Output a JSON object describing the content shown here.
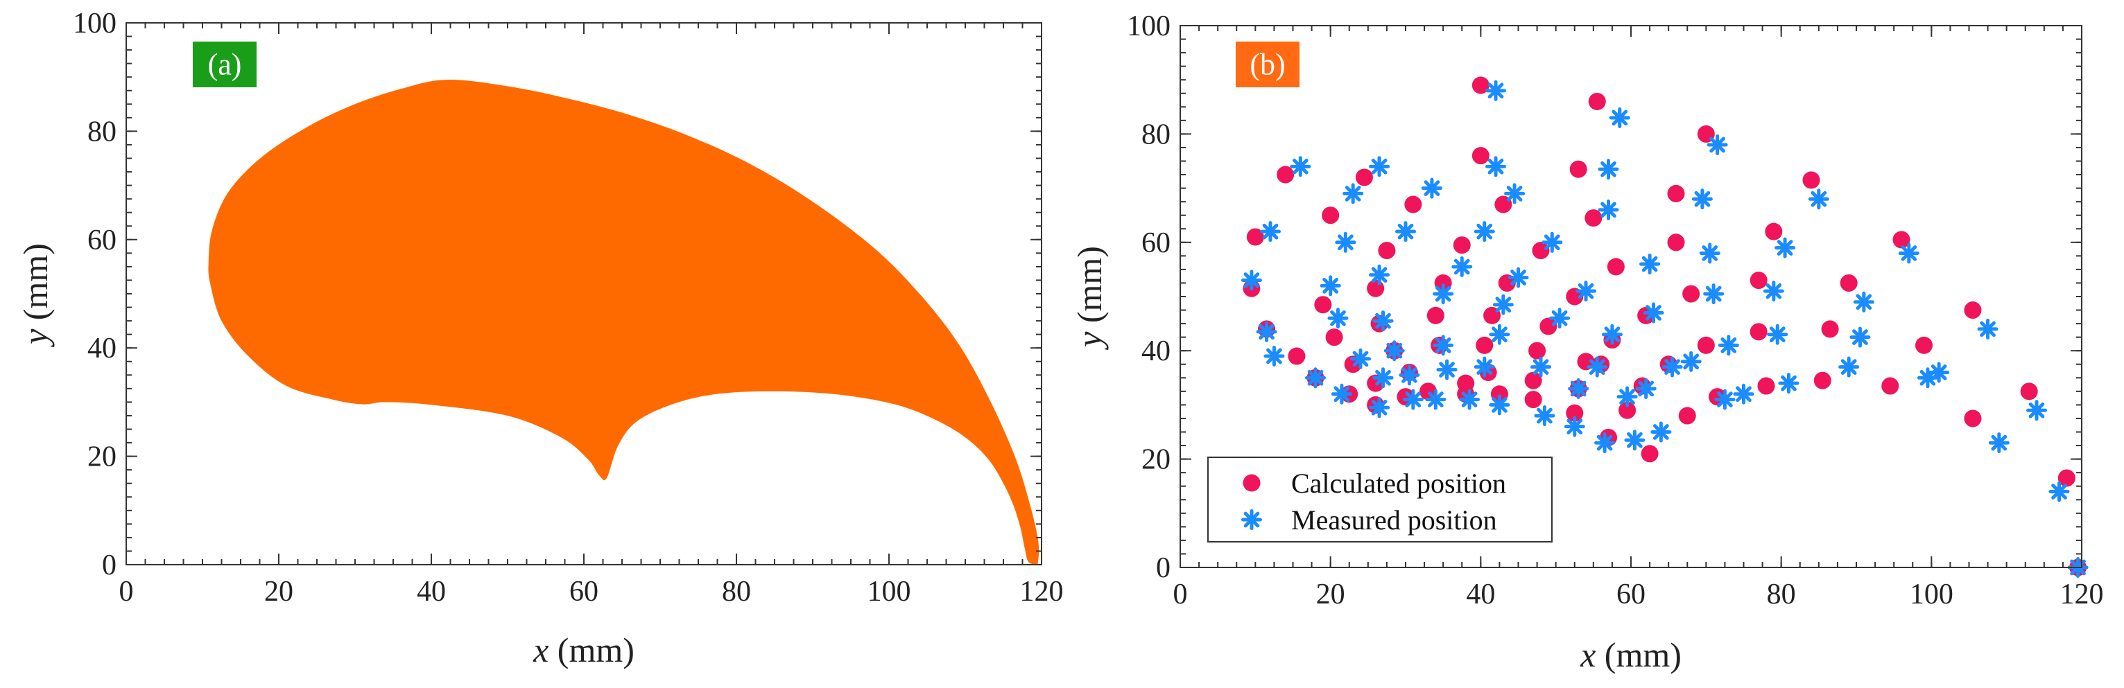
{
  "panels": [
    {
      "badge": "(a)",
      "badge_color": "#1a9e1a",
      "xlabel_var": "x",
      "xlabel_unit": " (mm)",
      "ylabel_var": "y",
      "ylabel_unit": " (mm)"
    },
    {
      "badge": "(b)",
      "badge_color": "#ff6a13",
      "xlabel_var": "x",
      "xlabel_unit": " (mm)",
      "ylabel_var": "y",
      "ylabel_unit": " (mm)"
    }
  ],
  "chart_data": [
    {
      "type": "area",
      "xlim": [
        0,
        120
      ],
      "ylim": [
        0,
        100
      ],
      "xticks": [
        0,
        20,
        40,
        60,
        80,
        100,
        120
      ],
      "yticks": [
        0,
        20,
        40,
        60,
        80,
        100
      ],
      "fill_color": "#ff6a00",
      "series": [
        {
          "outline": [
            [
              119.5,
              0
            ],
            [
              118.3,
              0.5
            ],
            [
              117.8,
              3
            ],
            [
              117.2,
              7
            ],
            [
              116.3,
              11
            ],
            [
              115,
              15
            ],
            [
              113,
              19.5
            ],
            [
              110,
              23.5
            ],
            [
              106,
              26.8
            ],
            [
              101,
              29.5
            ],
            [
              94,
              31.3
            ],
            [
              86,
              32
            ],
            [
              78,
              31.6
            ],
            [
              72,
              29.8
            ],
            [
              67,
              26.5
            ],
            [
              64.5,
              22
            ],
            [
              63,
              16
            ],
            [
              62,
              16.5
            ],
            [
              60.5,
              19.5
            ],
            [
              57,
              23.5
            ],
            [
              50,
              27.5
            ],
            [
              40,
              29.5
            ],
            [
              34,
              30
            ],
            [
              31,
              29.6
            ],
            [
              27,
              30.5
            ],
            [
              21,
              33
            ],
            [
              16,
              38.5
            ],
            [
              12.5,
              45
            ],
            [
              11,
              52
            ],
            [
              10.8,
              56
            ],
            [
              11.3,
              62
            ],
            [
              13.5,
              69
            ],
            [
              18,
              75.5
            ],
            [
              24,
              81
            ],
            [
              30,
              85
            ],
            [
              36,
              87.8
            ],
            [
              42,
              89.5
            ],
            [
              50,
              88.3
            ],
            [
              58,
              86
            ],
            [
              66,
              83
            ],
            [
              74,
              79
            ],
            [
              82,
              73.8
            ],
            [
              90,
              67
            ],
            [
              98,
              58.5
            ],
            [
              104,
              50
            ],
            [
              109,
              41
            ],
            [
              113,
              31
            ],
            [
              116.5,
              20
            ],
            [
              118.5,
              11
            ],
            [
              119.6,
              4
            ],
            [
              119.5,
              0
            ]
          ]
        }
      ]
    },
    {
      "type": "scatter",
      "xlim": [
        0,
        120
      ],
      "ylim": [
        0,
        100
      ],
      "xticks": [
        0,
        20,
        40,
        60,
        80,
        100,
        120
      ],
      "yticks": [
        0,
        20,
        40,
        60,
        80,
        100
      ],
      "legend_position": "bottom-left",
      "series": [
        {
          "name": "Calculated position",
          "marker": "circle",
          "color": "#f0145a",
          "points": [
            [
              9.5,
              51.5
            ],
            [
              10,
              61
            ],
            [
              11.5,
              44
            ],
            [
              14,
              72.5
            ],
            [
              15.5,
              39
            ],
            [
              18,
              35
            ],
            [
              19,
              48.5
            ],
            [
              20,
              65
            ],
            [
              20.5,
              42.5
            ],
            [
              22.5,
              32
            ],
            [
              23,
              37.5
            ],
            [
              24.5,
              72
            ],
            [
              26,
              51.5
            ],
            [
              26,
              34
            ],
            [
              26,
              30
            ],
            [
              26.5,
              45
            ],
            [
              27.5,
              58.5
            ],
            [
              28.5,
              40
            ],
            [
              30,
              31.5
            ],
            [
              30.5,
              36
            ],
            [
              31,
              67
            ],
            [
              33,
              32.5
            ],
            [
              34,
              46.5
            ],
            [
              34.5,
              41
            ],
            [
              35,
              52.5
            ],
            [
              37.5,
              59.5
            ],
            [
              38,
              32
            ],
            [
              38,
              34
            ],
            [
              40,
              76
            ],
            [
              40,
              89
            ],
            [
              40.5,
              41
            ],
            [
              41,
              36
            ],
            [
              41.5,
              46.5
            ],
            [
              42.5,
              32
            ],
            [
              43,
              67
            ],
            [
              43.5,
              52.5
            ],
            [
              47,
              34.5
            ],
            [
              47,
              31
            ],
            [
              47.5,
              40
            ],
            [
              48,
              58.5
            ],
            [
              49,
              44.5
            ],
            [
              52.5,
              28.5
            ],
            [
              52.5,
              50
            ],
            [
              53,
              33
            ],
            [
              53,
              73.5
            ],
            [
              54,
              38
            ],
            [
              55,
              64.5
            ],
            [
              55.5,
              86
            ],
            [
              56,
              37.5
            ],
            [
              57,
              24
            ],
            [
              57.5,
              42
            ],
            [
              58,
              55.5
            ],
            [
              59.5,
              29
            ],
            [
              61.5,
              33.5
            ],
            [
              62,
              46.5
            ],
            [
              62.5,
              21
            ],
            [
              65,
              37.5
            ],
            [
              66,
              60
            ],
            [
              66,
              69
            ],
            [
              67.5,
              28
            ],
            [
              68,
              50.5
            ],
            [
              70,
              41
            ],
            [
              70,
              80
            ],
            [
              71.5,
              31.5
            ],
            [
              77,
              53
            ],
            [
              77,
              43.5
            ],
            [
              78,
              33.5
            ],
            [
              79,
              62
            ],
            [
              84,
              71.5
            ],
            [
              85.5,
              34.5
            ],
            [
              86.5,
              44
            ],
            [
              89,
              52.5
            ],
            [
              94.5,
              33.5
            ],
            [
              96,
              60.5
            ],
            [
              99,
              41
            ],
            [
              105.5,
              47.5
            ],
            [
              105.5,
              27.5
            ],
            [
              113,
              32.5
            ],
            [
              118,
              16.5
            ],
            [
              119.5,
              0
            ]
          ]
        },
        {
          "name": "Measured position",
          "marker": "asterisk",
          "color": "#1a8cff",
          "points": [
            [
              9.5,
              53
            ],
            [
              11.5,
              43.5
            ],
            [
              12,
              62
            ],
            [
              12.5,
              39
            ],
            [
              16,
              74
            ],
            [
              18,
              35
            ],
            [
              20,
              52
            ],
            [
              21,
              46
            ],
            [
              21.5,
              32
            ],
            [
              22,
              60
            ],
            [
              23,
              69
            ],
            [
              24,
              38.5
            ],
            [
              26.5,
              29.5
            ],
            [
              26.5,
              54
            ],
            [
              26.5,
              74
            ],
            [
              27,
              45.5
            ],
            [
              27,
              35
            ],
            [
              28.5,
              40
            ],
            [
              30,
              62
            ],
            [
              30.5,
              35.5
            ],
            [
              31,
              31
            ],
            [
              33.5,
              70
            ],
            [
              34,
              31
            ],
            [
              35,
              50.5
            ],
            [
              35,
              41
            ],
            [
              35.5,
              36.5
            ],
            [
              37.5,
              55.5
            ],
            [
              38.5,
              31
            ],
            [
              40.5,
              37
            ],
            [
              40.5,
              62
            ],
            [
              42,
              88
            ],
            [
              42,
              74
            ],
            [
              42.5,
              30
            ],
            [
              42.5,
              43
            ],
            [
              43,
              48.5
            ],
            [
              44.5,
              69
            ],
            [
              45,
              53.5
            ],
            [
              48,
              37
            ],
            [
              48.5,
              28
            ],
            [
              49.5,
              60
            ],
            [
              50.5,
              46
            ],
            [
              52.5,
              26
            ],
            [
              53,
              33
            ],
            [
              54,
              51
            ],
            [
              55.5,
              37
            ],
            [
              56.5,
              23
            ],
            [
              57,
              66
            ],
            [
              57,
              73.5
            ],
            [
              57.5,
              43
            ],
            [
              58.5,
              83
            ],
            [
              59.5,
              31.5
            ],
            [
              60.5,
              23.5
            ],
            [
              62,
              33
            ],
            [
              62.5,
              56
            ],
            [
              63,
              47
            ],
            [
              64,
              25
            ],
            [
              65.5,
              37
            ],
            [
              68,
              38
            ],
            [
              69.5,
              68
            ],
            [
              70.5,
              58
            ],
            [
              71,
              50.5
            ],
            [
              71.5,
              78
            ],
            [
              72.5,
              31
            ],
            [
              73,
              41
            ],
            [
              75,
              32
            ],
            [
              79,
              51
            ],
            [
              79.5,
              43
            ],
            [
              80.5,
              59
            ],
            [
              81,
              34
            ],
            [
              85,
              68
            ],
            [
              89,
              37
            ],
            [
              90.5,
              42.5
            ],
            [
              91,
              49
            ],
            [
              97,
              58
            ],
            [
              99.5,
              35
            ],
            [
              101,
              36
            ],
            [
              107.5,
              44
            ],
            [
              109,
              23
            ],
            [
              114,
              29
            ],
            [
              117,
              14
            ],
            [
              119.5,
              0
            ]
          ]
        }
      ]
    }
  ]
}
